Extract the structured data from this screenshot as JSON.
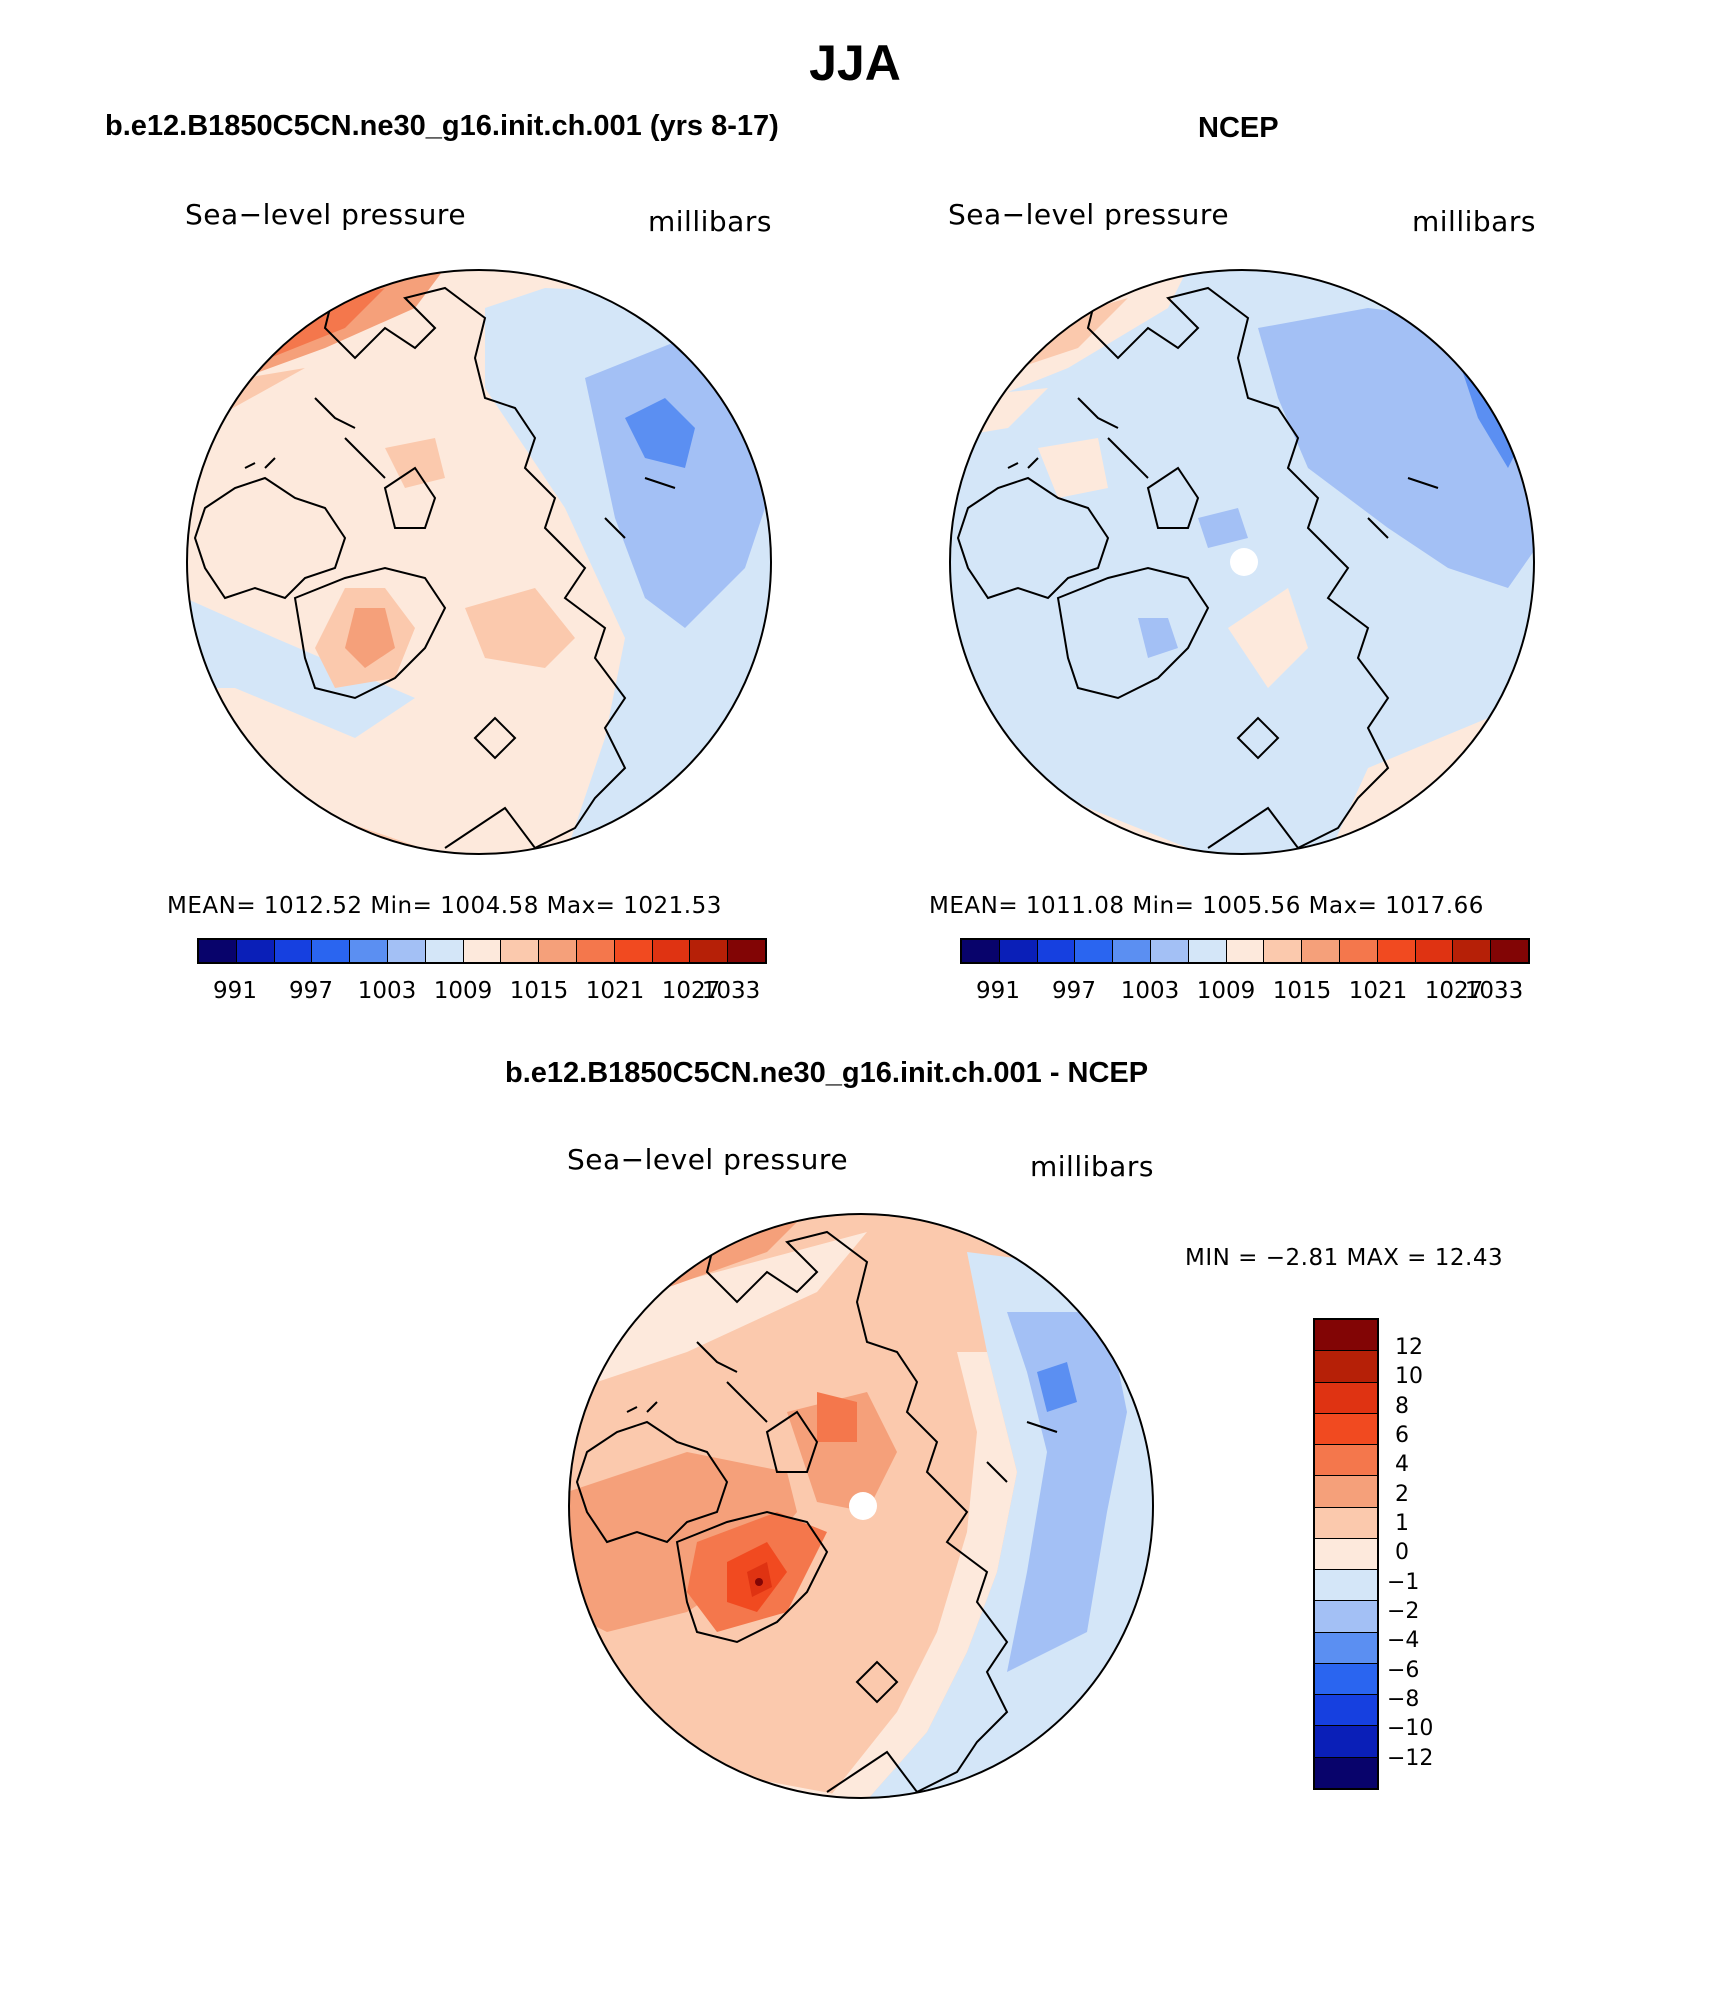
{
  "figure": {
    "title": "JJA",
    "panels": [
      {
        "title": "b.e12.B1850C5CN.ne30_g16.init.ch.001 (yrs 8-17)",
        "variable": "Sea−level pressure",
        "units": "millibars",
        "stats": "MEAN= 1012.52   Min= 1004.58   Max= 1021.53",
        "colorbar_labels": [
          "991",
          "997",
          "1003",
          "1009",
          "1015",
          "1021",
          "1027",
          "1033"
        ]
      },
      {
        "title": "NCEP",
        "variable": "Sea−level pressure",
        "units": "millibars",
        "stats": "MEAN= 1011.08   Min= 1005.56   Max= 1017.66",
        "colorbar_labels": [
          "991",
          "997",
          "1003",
          "1009",
          "1015",
          "1021",
          "1027",
          "1033"
        ]
      },
      {
        "title": "b.e12.B1850C5CN.ne30_g16.init.ch.001 - NCEP",
        "variable": "Sea−level pressure",
        "units": "millibars",
        "stats": "MIN =   −2.81  MAX =   12.43",
        "colorbar_labels": [
          "12",
          "10",
          "8",
          "6",
          "4",
          "2",
          "1",
          "0",
          "−1",
          "−2",
          "−4",
          "−6",
          "−8",
          "−10",
          "−12"
        ]
      }
    ]
  },
  "colors": {
    "scale": [
      "#08036b",
      "#0a1fb8",
      "#1640e0",
      "#2a65f0",
      "#5b8ff2",
      "#a3c0f5",
      "#d4e6f8",
      "#fde9dc",
      "#fbc9ad",
      "#f5a07a",
      "#f4774c",
      "#f14a20",
      "#df3312",
      "#b62007",
      "#820505"
    ],
    "diff_scale_top_to_bottom": [
      "#820505",
      "#b62007",
      "#df3312",
      "#f14a20",
      "#f4774c",
      "#f5a07a",
      "#fbc9ad",
      "#fde9dc",
      "#d4e6f8",
      "#a3c0f5",
      "#5b8ff2",
      "#2a65f0",
      "#1640e0",
      "#0a1fb8",
      "#08036b"
    ]
  }
}
